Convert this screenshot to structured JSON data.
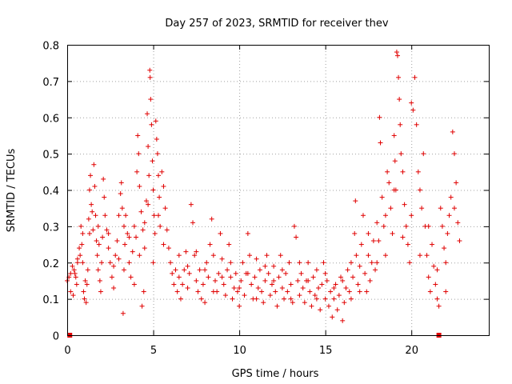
{
  "chart_data": {
    "type": "scatter",
    "title": "Day 257 of 2023, SRMTID for receiver thev",
    "xlabel": "GPS time / hours",
    "ylabel": "SRMTID / TECUs",
    "xlim": [
      0,
      24.5
    ],
    "ylim": [
      0,
      0.8
    ],
    "xticks": [
      0,
      5,
      10,
      15,
      20
    ],
    "yticks": [
      0,
      0.1,
      0.2,
      0.3,
      0.4,
      0.5,
      0.6,
      0.7,
      0.8
    ],
    "xtick_labels": [
      "0",
      "5",
      "10",
      "15",
      "20"
    ],
    "ytick_labels": [
      "0",
      "0.1",
      "0.2",
      "0.3",
      "0.4",
      "0.5",
      "0.6",
      "0.7",
      "0.8"
    ],
    "grid": true,
    "marker": "plus",
    "color": "#e00000",
    "points": [
      [
        0.0,
        0.15
      ],
      [
        0.1,
        0.16
      ],
      [
        0.2,
        0.12
      ],
      [
        0.3,
        0.19
      ],
      [
        0.35,
        0.11
      ],
      [
        0.4,
        0.18
      ],
      [
        0.45,
        0.17
      ],
      [
        0.5,
        0.16
      ],
      [
        0.55,
        0.14
      ],
      [
        0.6,
        0.2
      ],
      [
        0.7,
        0.24
      ],
      [
        0.75,
        0.22
      ],
      [
        0.8,
        0.3
      ],
      [
        0.85,
        0.25
      ],
      [
        0.9,
        0.28
      ],
      [
        0.95,
        0.12
      ],
      [
        1.0,
        0.1
      ],
      [
        1.05,
        0.15
      ],
      [
        1.1,
        0.09
      ],
      [
        1.15,
        0.14
      ],
      [
        1.2,
        0.18
      ],
      [
        1.25,
        0.32
      ],
      [
        1.3,
        0.28
      ],
      [
        1.35,
        0.44
      ],
      [
        1.4,
        0.36
      ],
      [
        1.45,
        0.34
      ],
      [
        1.5,
        0.29
      ],
      [
        1.55,
        0.47
      ],
      [
        1.6,
        0.41
      ],
      [
        1.65,
        0.33
      ],
      [
        1.7,
        0.26
      ],
      [
        1.75,
        0.22
      ],
      [
        1.8,
        0.18
      ],
      [
        1.85,
        0.25
      ],
      [
        1.9,
        0.15
      ],
      [
        1.95,
        0.12
      ],
      [
        2.0,
        0.2
      ],
      [
        2.05,
        0.27
      ],
      [
        2.1,
        0.43
      ],
      [
        2.15,
        0.38
      ],
      [
        2.2,
        0.33
      ],
      [
        2.3,
        0.29
      ],
      [
        2.4,
        0.24
      ],
      [
        2.5,
        0.2
      ],
      [
        2.6,
        0.16
      ],
      [
        2.7,
        0.13
      ],
      [
        2.8,
        0.22
      ],
      [
        2.9,
        0.26
      ],
      [
        3.0,
        0.21
      ],
      [
        3.1,
        0.39
      ],
      [
        3.15,
        0.42
      ],
      [
        3.2,
        0.35
      ],
      [
        3.25,
        0.06
      ],
      [
        3.3,
        0.3
      ],
      [
        3.35,
        0.25
      ],
      [
        3.4,
        0.33
      ],
      [
        3.5,
        0.28
      ],
      [
        3.6,
        0.2
      ],
      [
        3.7,
        0.16
      ],
      [
        3.8,
        0.23
      ],
      [
        3.9,
        0.3
      ],
      [
        4.0,
        0.27
      ],
      [
        4.05,
        0.45
      ],
      [
        4.1,
        0.55
      ],
      [
        4.15,
        0.5
      ],
      [
        4.2,
        0.41
      ],
      [
        4.3,
        0.34
      ],
      [
        4.35,
        0.08
      ],
      [
        4.4,
        0.29
      ],
      [
        4.45,
        0.12
      ],
      [
        4.5,
        0.24
      ],
      [
        4.6,
        0.37
      ],
      [
        4.65,
        0.61
      ],
      [
        4.7,
        0.52
      ],
      [
        4.75,
        0.44
      ],
      [
        4.8,
        0.73
      ],
      [
        4.82,
        0.71
      ],
      [
        4.85,
        0.65
      ],
      [
        4.9,
        0.58
      ],
      [
        4.95,
        0.48
      ],
      [
        5.0,
        0.4
      ],
      [
        5.05,
        0.33
      ],
      [
        5.1,
        0.28
      ],
      [
        5.15,
        0.59
      ],
      [
        5.2,
        0.54
      ],
      [
        5.25,
        0.5
      ],
      [
        5.3,
        0.44
      ],
      [
        5.35,
        0.38
      ],
      [
        5.4,
        0.3
      ],
      [
        5.5,
        0.45
      ],
      [
        5.6,
        0.41
      ],
      [
        5.7,
        0.35
      ],
      [
        5.8,
        0.29
      ],
      [
        5.9,
        0.24
      ],
      [
        6.0,
        0.2
      ],
      [
        6.1,
        0.17
      ],
      [
        6.2,
        0.14
      ],
      [
        6.3,
        0.18
      ],
      [
        6.4,
        0.12
      ],
      [
        6.5,
        0.16
      ],
      [
        6.6,
        0.1
      ],
      [
        6.7,
        0.14
      ],
      [
        6.8,
        0.18
      ],
      [
        6.9,
        0.23
      ],
      [
        7.0,
        0.13
      ],
      [
        7.1,
        0.17
      ],
      [
        7.2,
        0.36
      ],
      [
        7.3,
        0.31
      ],
      [
        7.4,
        0.22
      ],
      [
        7.5,
        0.15
      ],
      [
        7.6,
        0.12
      ],
      [
        7.7,
        0.18
      ],
      [
        7.8,
        0.1
      ],
      [
        7.9,
        0.14
      ],
      [
        8.0,
        0.09
      ],
      [
        8.1,
        0.2
      ],
      [
        8.2,
        0.16
      ],
      [
        8.3,
        0.25
      ],
      [
        8.4,
        0.32
      ],
      [
        8.5,
        0.22
      ],
      [
        8.6,
        0.15
      ],
      [
        8.7,
        0.12
      ],
      [
        8.8,
        0.17
      ],
      [
        8.9,
        0.28
      ],
      [
        9.0,
        0.21
      ],
      [
        9.1,
        0.14
      ],
      [
        9.2,
        0.11
      ],
      [
        9.3,
        0.18
      ],
      [
        9.4,
        0.25
      ],
      [
        9.5,
        0.16
      ],
      [
        9.6,
        0.1
      ],
      [
        9.7,
        0.13
      ],
      [
        9.8,
        0.17
      ],
      [
        9.9,
        0.12
      ],
      [
        10.0,
        0.08
      ],
      [
        10.1,
        0.15
      ],
      [
        10.2,
        0.2
      ],
      [
        10.3,
        0.11
      ],
      [
        10.4,
        0.17
      ],
      [
        10.5,
        0.28
      ],
      [
        10.6,
        0.22
      ],
      [
        10.7,
        0.14
      ],
      [
        10.8,
        0.1
      ],
      [
        10.9,
        0.16
      ],
      [
        11.0,
        0.21
      ],
      [
        11.1,
        0.13
      ],
      [
        11.2,
        0.18
      ],
      [
        11.3,
        0.12
      ],
      [
        11.4,
        0.09
      ],
      [
        11.5,
        0.15
      ],
      [
        11.6,
        0.22
      ],
      [
        11.7,
        0.17
      ],
      [
        11.8,
        0.11
      ],
      [
        11.9,
        0.14
      ],
      [
        12.0,
        0.19
      ],
      [
        12.1,
        0.12
      ],
      [
        12.2,
        0.08
      ],
      [
        12.3,
        0.16
      ],
      [
        12.4,
        0.22
      ],
      [
        12.5,
        0.13
      ],
      [
        12.6,
        0.1
      ],
      [
        12.7,
        0.17
      ],
      [
        12.8,
        0.12
      ],
      [
        12.9,
        0.2
      ],
      [
        13.0,
        0.14
      ],
      [
        13.1,
        0.09
      ],
      [
        13.2,
        0.3
      ],
      [
        13.3,
        0.27
      ],
      [
        13.4,
        0.15
      ],
      [
        13.5,
        0.11
      ],
      [
        13.6,
        0.17
      ],
      [
        13.7,
        0.13
      ],
      [
        13.8,
        0.09
      ],
      [
        13.9,
        0.15
      ],
      [
        14.0,
        0.2
      ],
      [
        14.1,
        0.12
      ],
      [
        14.2,
        0.08
      ],
      [
        14.3,
        0.16
      ],
      [
        14.4,
        0.11
      ],
      [
        14.5,
        0.18
      ],
      [
        14.6,
        0.13
      ],
      [
        14.7,
        0.07
      ],
      [
        14.8,
        0.14
      ],
      [
        14.9,
        0.2
      ],
      [
        15.0,
        0.1
      ],
      [
        15.1,
        0.15
      ],
      [
        15.2,
        0.08
      ],
      [
        15.3,
        0.12
      ],
      [
        15.4,
        0.05
      ],
      [
        15.5,
        0.1
      ],
      [
        15.6,
        0.14
      ],
      [
        15.7,
        0.07
      ],
      [
        15.8,
        0.11
      ],
      [
        15.9,
        0.16
      ],
      [
        16.0,
        0.04
      ],
      [
        16.1,
        0.09
      ],
      [
        16.2,
        0.13
      ],
      [
        16.3,
        0.18
      ],
      [
        16.4,
        0.12
      ],
      [
        16.5,
        0.2
      ],
      [
        16.6,
        0.16
      ],
      [
        16.7,
        0.28
      ],
      [
        16.75,
        0.37
      ],
      [
        16.8,
        0.22
      ],
      [
        16.9,
        0.14
      ],
      [
        17.0,
        0.19
      ],
      [
        17.1,
        0.25
      ],
      [
        17.2,
        0.33
      ],
      [
        17.3,
        0.17
      ],
      [
        17.4,
        0.12
      ],
      [
        17.5,
        0.22
      ],
      [
        17.6,
        0.15
      ],
      [
        17.7,
        0.2
      ],
      [
        17.8,
        0.26
      ],
      [
        17.9,
        0.18
      ],
      [
        18.0,
        0.31
      ],
      [
        18.1,
        0.26
      ],
      [
        18.15,
        0.6
      ],
      [
        18.2,
        0.53
      ],
      [
        18.3,
        0.38
      ],
      [
        18.4,
        0.3
      ],
      [
        18.5,
        0.22
      ],
      [
        18.6,
        0.45
      ],
      [
        18.7,
        0.42
      ],
      [
        18.8,
        0.35
      ],
      [
        18.9,
        0.28
      ],
      [
        19.0,
        0.55
      ],
      [
        19.05,
        0.48
      ],
      [
        19.1,
        0.4
      ],
      [
        19.15,
        0.78
      ],
      [
        19.2,
        0.77
      ],
      [
        19.25,
        0.71
      ],
      [
        19.3,
        0.65
      ],
      [
        19.35,
        0.58
      ],
      [
        19.4,
        0.5
      ],
      [
        19.5,
        0.45
      ],
      [
        19.6,
        0.36
      ],
      [
        19.7,
        0.3
      ],
      [
        19.8,
        0.25
      ],
      [
        19.9,
        0.2
      ],
      [
        20.0,
        0.64
      ],
      [
        20.1,
        0.62
      ],
      [
        20.2,
        0.71
      ],
      [
        20.3,
        0.58
      ],
      [
        20.4,
        0.45
      ],
      [
        20.5,
        0.4
      ],
      [
        20.6,
        0.35
      ],
      [
        20.7,
        0.5
      ],
      [
        20.8,
        0.3
      ],
      [
        20.9,
        0.22
      ],
      [
        21.0,
        0.16
      ],
      [
        21.1,
        0.12
      ],
      [
        21.2,
        0.25
      ],
      [
        21.3,
        0.19
      ],
      [
        21.4,
        0.14
      ],
      [
        21.5,
        0.1
      ],
      [
        21.6,
        0.08
      ],
      [
        21.7,
        0.35
      ],
      [
        21.8,
        0.3
      ],
      [
        21.9,
        0.24
      ],
      [
        22.0,
        0.2
      ],
      [
        22.1,
        0.28
      ],
      [
        22.2,
        0.33
      ],
      [
        22.3,
        0.38
      ],
      [
        22.4,
        0.56
      ],
      [
        22.5,
        0.5
      ],
      [
        22.6,
        0.42
      ],
      [
        22.7,
        0.31
      ],
      [
        22.8,
        0.26
      ]
    ],
    "extra_points": [
      [
        0.2,
        0.17
      ],
      [
        0.6,
        0.21
      ],
      [
        1.3,
        0.4
      ],
      [
        2.4,
        0.28
      ],
      [
        3.0,
        0.33
      ],
      [
        3.6,
        0.27
      ],
      [
        4.2,
        0.22
      ],
      [
        4.5,
        0.31
      ],
      [
        5.0,
        0.2
      ],
      [
        5.6,
        0.25
      ],
      [
        6.5,
        0.22
      ],
      [
        7.0,
        0.19
      ],
      [
        7.5,
        0.23
      ],
      [
        8.0,
        0.18
      ],
      [
        8.5,
        0.12
      ],
      [
        9.0,
        0.16
      ],
      [
        9.5,
        0.2
      ],
      [
        10.0,
        0.13
      ],
      [
        10.5,
        0.17
      ],
      [
        11.0,
        0.1
      ],
      [
        11.5,
        0.19
      ],
      [
        12.0,
        0.15
      ],
      [
        12.5,
        0.18
      ],
      [
        13.0,
        0.1
      ],
      [
        13.5,
        0.2
      ],
      [
        14.0,
        0.15
      ],
      [
        14.5,
        0.1
      ],
      [
        15.0,
        0.17
      ],
      [
        15.5,
        0.13
      ],
      [
        16.0,
        0.15
      ],
      [
        16.5,
        0.1
      ],
      [
        17.0,
        0.12
      ],
      [
        17.5,
        0.28
      ],
      [
        18.0,
        0.2
      ],
      [
        18.5,
        0.33
      ],
      [
        19.0,
        0.4
      ],
      [
        19.5,
        0.27
      ],
      [
        20.0,
        0.33
      ],
      [
        20.5,
        0.22
      ],
      [
        21.0,
        0.3
      ],
      [
        21.5,
        0.18
      ],
      [
        22.0,
        0.12
      ],
      [
        22.5,
        0.35
      ],
      [
        0.9,
        0.2
      ],
      [
        1.8,
        0.3
      ],
      [
        2.7,
        0.19
      ],
      [
        3.3,
        0.18
      ],
      [
        3.9,
        0.14
      ],
      [
        4.7,
        0.36
      ],
      [
        5.3,
        0.33
      ]
    ],
    "satellite_markers": [
      [
        0.15,
        0.0
      ],
      [
        21.6,
        0.0
      ]
    ]
  }
}
